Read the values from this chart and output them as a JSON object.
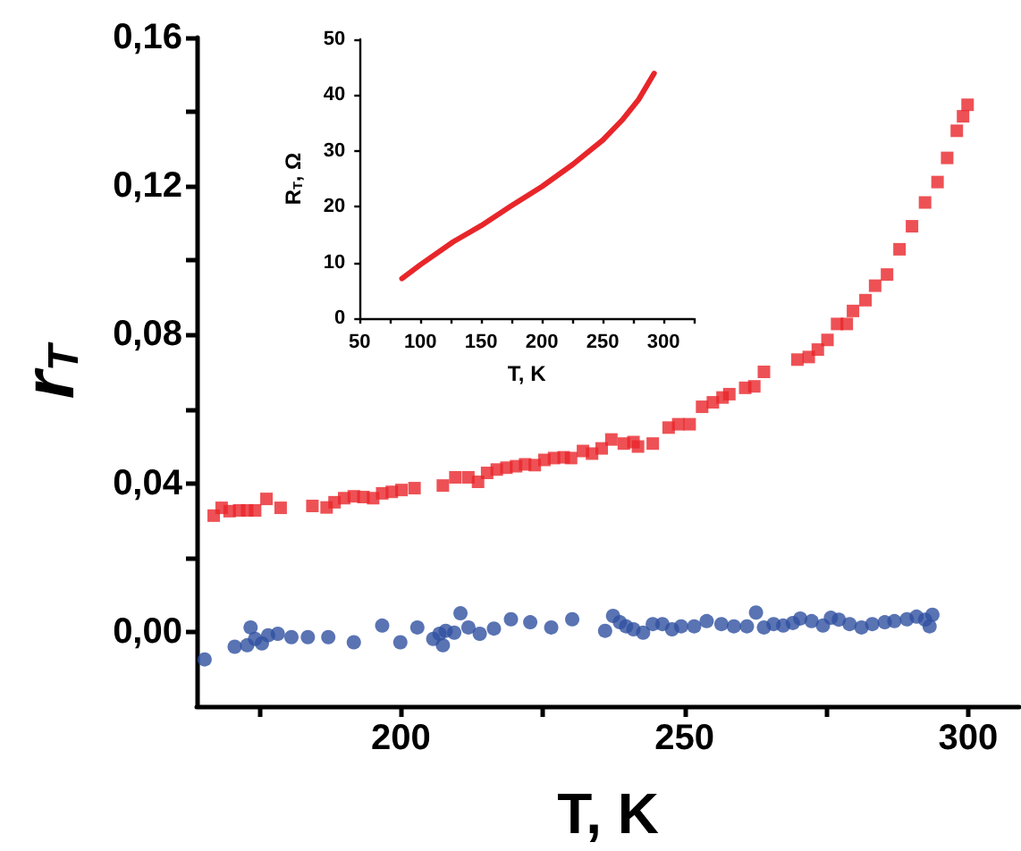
{
  "chart_data": [
    {
      "type": "scatter",
      "xlabel": "T, K",
      "ylabel": "r$_{T}$",
      "xlim": [
        164,
        309
      ],
      "ylim": [
        -0.02,
        0.16
      ],
      "xticks": [
        {
          "value": 175,
          "label": null
        },
        200,
        {
          "value": 225,
          "label": null
        },
        250,
        {
          "value": 275,
          "label": null
        },
        300
      ],
      "yticks": [
        {
          "value": 0,
          "label": "0,00"
        },
        {
          "value": 0.02,
          "label": null
        },
        {
          "value": 0.04,
          "label": "0,04"
        },
        {
          "value": 0.06,
          "label": null
        },
        {
          "value": 0.08,
          "label": "0,08"
        },
        {
          "value": 0.1,
          "label": null
        },
        {
          "value": 0.12,
          "label": "0,12"
        },
        {
          "value": 0.14,
          "label": null
        },
        {
          "value": 0.16,
          "label": "0,16"
        }
      ],
      "series": [
        {
          "color": "#e8262a",
          "marker": "square",
          "x": [
            167.0,
            168.4,
            169.8,
            171.5,
            172.9,
            174.3,
            176.3,
            178.8,
            184.4,
            186.9,
            188.3,
            190.0,
            191.7,
            193.4,
            195.1,
            196.7,
            198.4,
            200.1,
            202.4,
            207.4,
            209.6,
            211.9,
            213.6,
            215.2,
            216.9,
            218.6,
            220.3,
            221.9,
            223.6,
            225.3,
            227.0,
            228.7,
            230.0,
            232.1,
            233.7,
            235.4,
            237.1,
            239.3,
            241.0,
            241.8,
            244.4,
            247.2,
            248.9,
            250.9,
            253.1,
            255.0,
            256.7,
            257.9,
            260.7,
            262.3,
            264.0,
            269.9,
            271.9,
            273.5,
            275.2,
            276.9,
            278.6,
            279.7,
            281.9,
            283.6,
            285.7,
            287.9,
            290.1,
            292.4,
            294.6,
            296.3,
            298.0,
            299.1,
            299.9
          ],
          "values": [
            0.0313,
            0.0334,
            0.0325,
            0.0327,
            0.0327,
            0.0327,
            0.0358,
            0.0334,
            0.0339,
            0.0335,
            0.0349,
            0.036,
            0.0365,
            0.0363,
            0.036,
            0.0373,
            0.0377,
            0.0382,
            0.0387,
            0.0394,
            0.0416,
            0.0416,
            0.0404,
            0.0428,
            0.0437,
            0.0442,
            0.0446,
            0.0451,
            0.0449,
            0.0463,
            0.0468,
            0.047,
            0.0468,
            0.0487,
            0.048,
            0.0494,
            0.0518,
            0.0507,
            0.0511,
            0.0499,
            0.0507,
            0.055,
            0.0559,
            0.0559,
            0.0606,
            0.0618,
            0.0631,
            0.064,
            0.0657,
            0.0661,
            0.07,
            0.0733,
            0.074,
            0.076,
            0.0786,
            0.0829,
            0.0829,
            0.0864,
            0.0893,
            0.0932,
            0.0962,
            0.103,
            0.1092,
            0.1156,
            0.1211,
            0.1276,
            0.1349,
            0.1388,
            0.1419
          ]
        },
        {
          "color": "#3050a0",
          "marker": "circle",
          "x": [
            165.4,
            170.7,
            172.9,
            173.5,
            174.3,
            175.5,
            176.6,
            178.3,
            180.7,
            183.6,
            187.2,
            191.7,
            196.7,
            199.9,
            202.9,
            205.7,
            206.8,
            207.4,
            207.9,
            209.4,
            210.5,
            211.9,
            213.9,
            216.4,
            219.4,
            222.8,
            226.5,
            230.2,
            236.0,
            237.4,
            238.6,
            239.7,
            241.0,
            242.7,
            244.4,
            246.1,
            247.8,
            249.4,
            251.7,
            253.9,
            256.5,
            258.7,
            261.0,
            262.6,
            264.0,
            265.7,
            267.4,
            269.1,
            270.4,
            272.4,
            274.4,
            275.8,
            277.2,
            279.1,
            281.2,
            283.1,
            285.3,
            287.0,
            289.2,
            290.9,
            292.4,
            293.2,
            293.7
          ],
          "values": [
            -0.0074,
            -0.004,
            -0.0036,
            0.0012,
            -0.0019,
            -0.0031,
            -0.0009,
            -0.0005,
            -0.0014,
            -0.0014,
            -0.0014,
            -0.0028,
            0.0017,
            -0.0028,
            0.0012,
            -0.0019,
            -0.0005,
            -0.0036,
            0.0003,
            -0.0002,
            0.005,
            0.0012,
            -0.0005,
            0.0009,
            0.0034,
            0.0026,
            0.0012,
            0.0034,
            0.0003,
            0.0043,
            0.0026,
            0.0015,
            0.0007,
            -0.0002,
            0.0021,
            0.0021,
            0.0007,
            0.0015,
            0.0015,
            0.0029,
            0.0021,
            0.0015,
            0.0015,
            0.0052,
            0.0012,
            0.0021,
            0.0017,
            0.0024,
            0.0036,
            0.0029,
            0.0017,
            0.0038,
            0.0033,
            0.0021,
            0.0012,
            0.0021,
            0.0026,
            0.0029,
            0.0034,
            0.0041,
            0.0033,
            0.0015,
            0.0046
          ]
        }
      ]
    },
    {
      "type": "line",
      "xlabel": "T, K",
      "ylabel": "R$_{T}$, Ω",
      "xlim": [
        50,
        325
      ],
      "ylim": [
        0,
        50
      ],
      "xticks": [
        50,
        {
          "value": 75,
          "label": null
        },
        100,
        {
          "value": 125,
          "label": null
        },
        150,
        {
          "value": 175,
          "label": null
        },
        200,
        {
          "value": 225,
          "label": null
        },
        250,
        {
          "value": 275,
          "label": null
        },
        300,
        {
          "value": 325,
          "label": null
        }
      ],
      "yticks": [
        0,
        10,
        20,
        30,
        40,
        50
      ],
      "marker": "none",
      "series": [
        {
          "color": "#e8262a",
          "x": [
            84.8,
            100,
            127,
            150,
            174.5,
            200,
            225.6,
            250,
            266.8,
            279.6,
            292.4
          ],
          "values": [
            7.1,
            9.6,
            13.7,
            16.6,
            20.1,
            23.6,
            27.6,
            31.9,
            35.7,
            39.2,
            43.9
          ]
        }
      ]
    }
  ]
}
